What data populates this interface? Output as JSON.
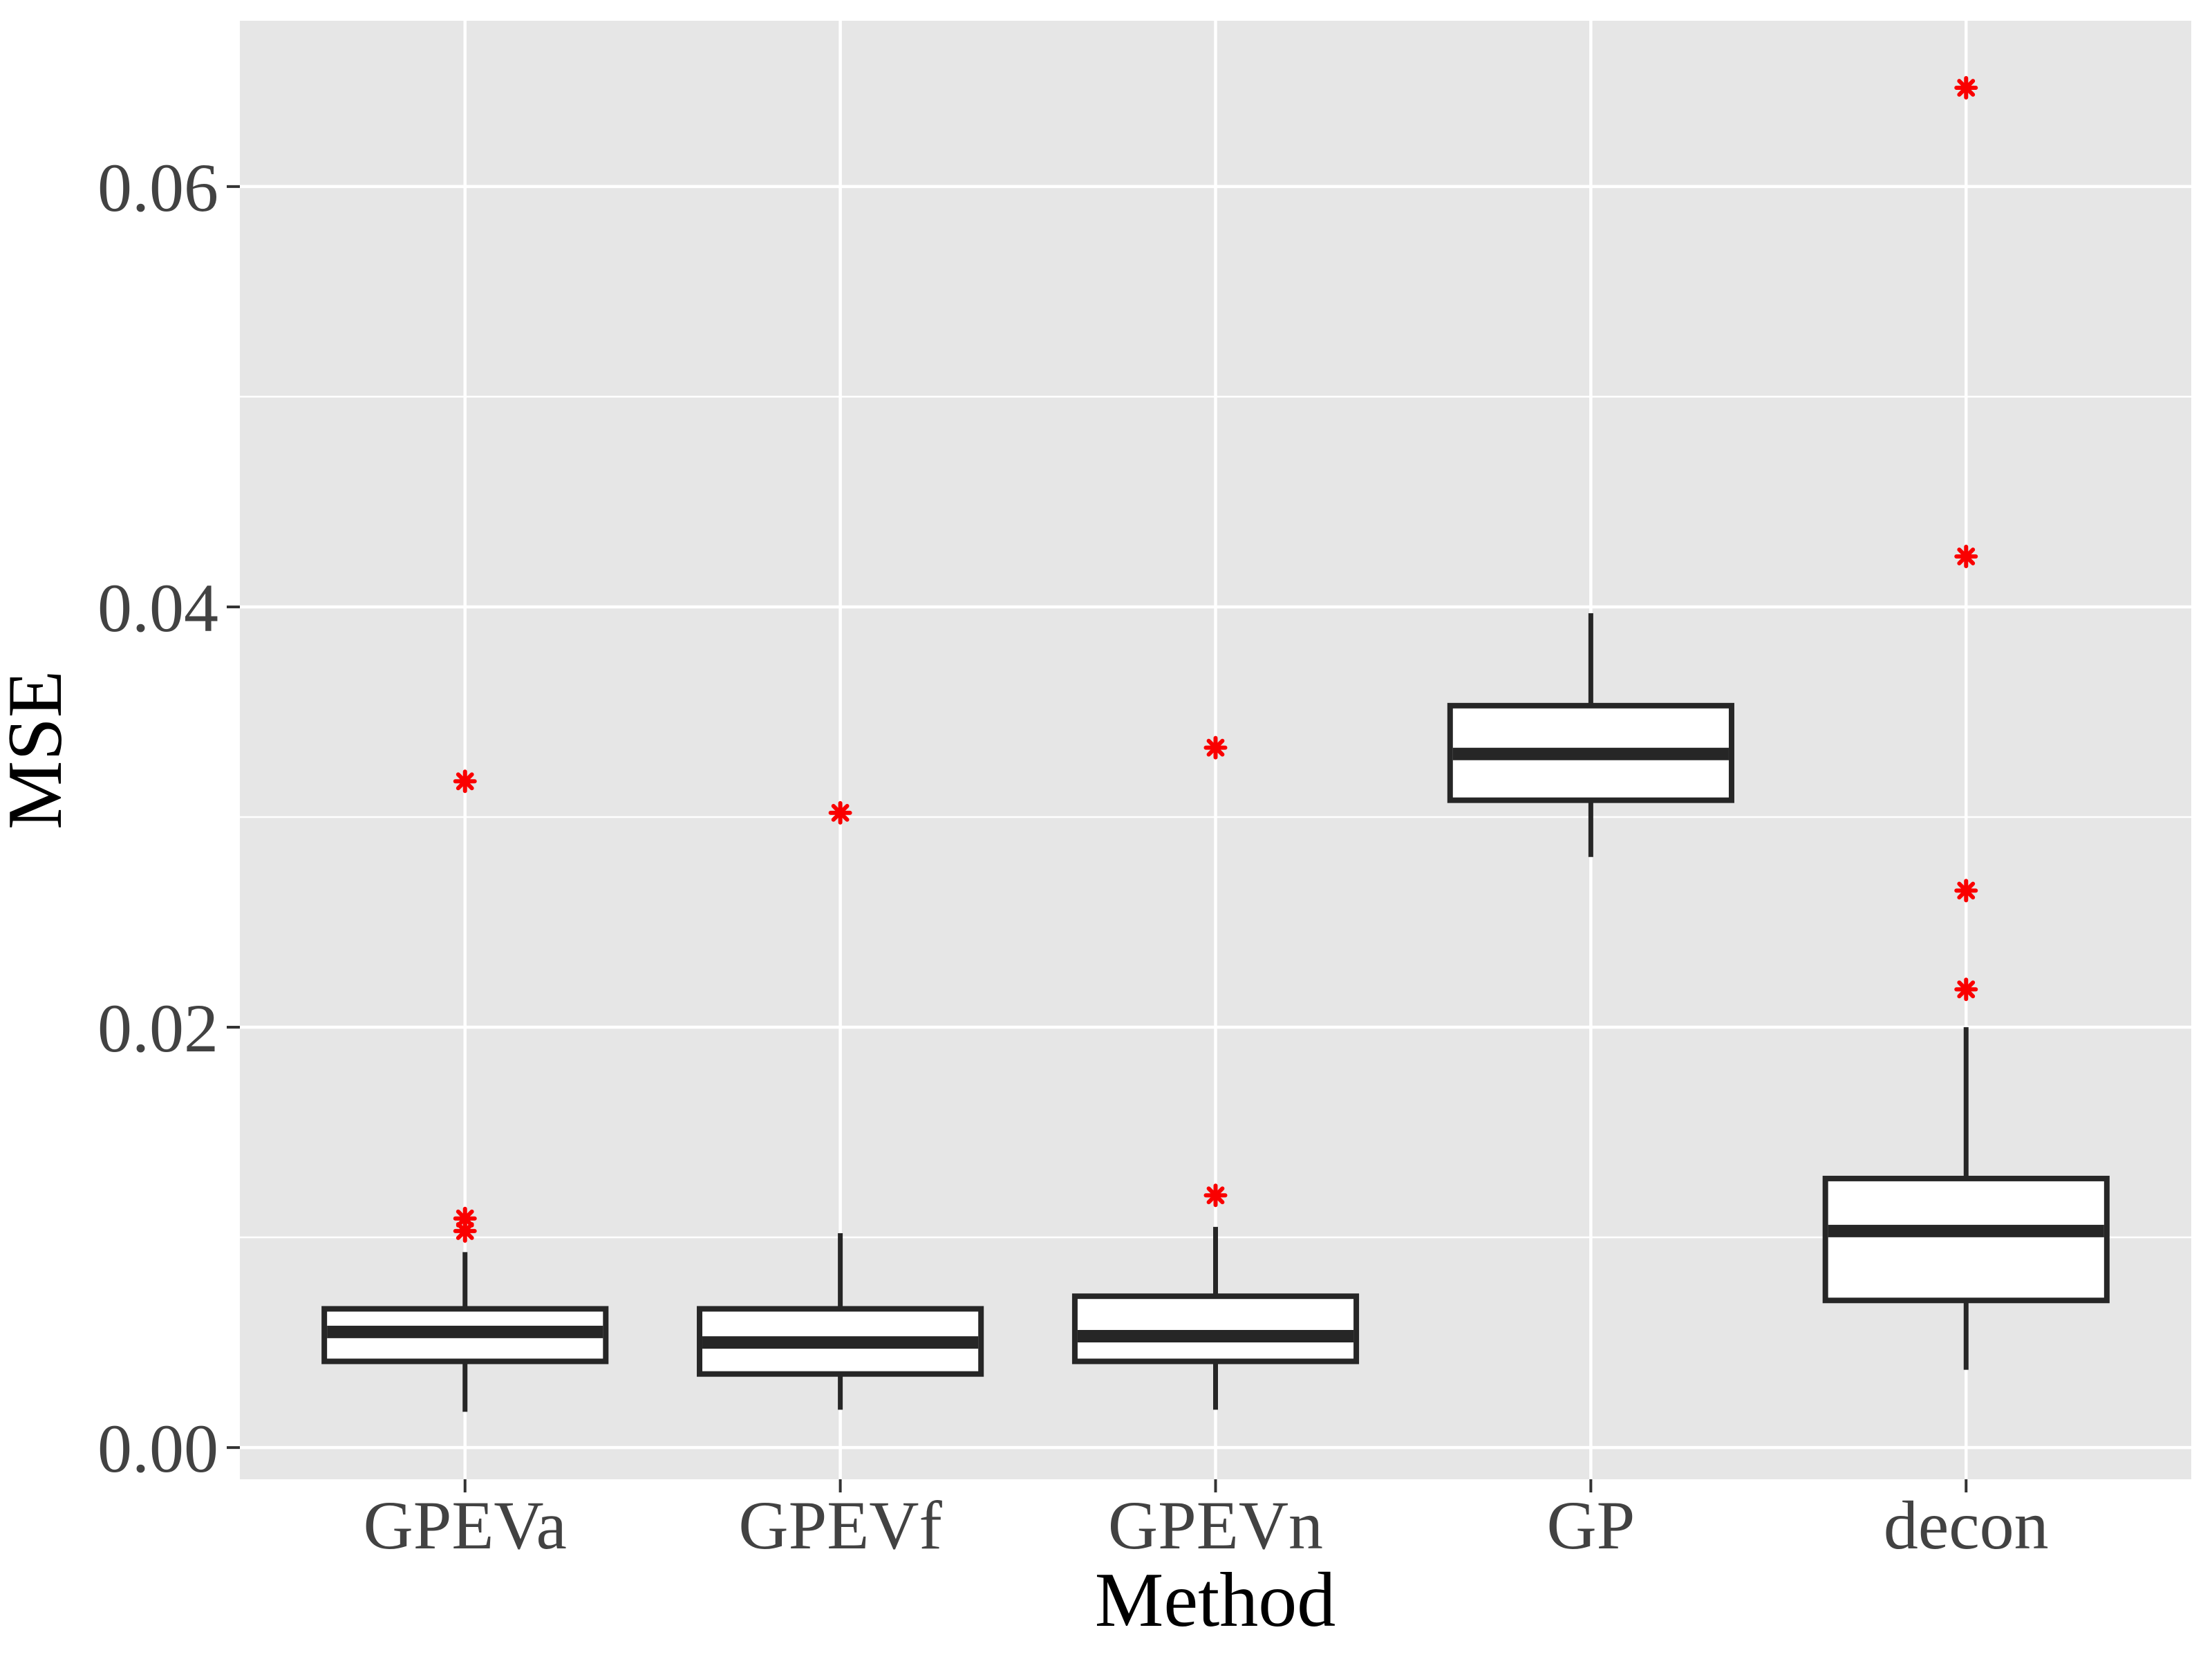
{
  "chart_data": {
    "type": "boxplot",
    "title": "",
    "xlabel": "Method",
    "ylabel": "MSE",
    "categories": [
      "GPEVa",
      "GPEVf",
      "GPEVn",
      "GP",
      "decon"
    ],
    "ylim": [
      -0.00151,
      0.06789
    ],
    "y_axis": {
      "major_ticks": [
        0.0,
        0.02,
        0.04,
        0.06
      ],
      "major_tick_labels": [
        "0.00",
        "0.02",
        "0.04",
        "0.06"
      ],
      "minor_ticks": [
        0.01,
        0.03,
        0.05
      ]
    },
    "grid": {
      "horizontal_major": true,
      "horizontal_minor": true,
      "vertical_at_categories": true,
      "vertical_minor": false
    },
    "legend": "none",
    "series": [
      {
        "category": "GPEVa",
        "whisker_low": 0.0017,
        "q1": 0.0041,
        "median": 0.0055,
        "q3": 0.0066,
        "whisker_high": 0.0093,
        "outliers": [
          0.0103,
          0.0109,
          0.0317
        ]
      },
      {
        "category": "GPEVf",
        "whisker_low": 0.0018,
        "q1": 0.0035,
        "median": 0.005,
        "q3": 0.0066,
        "whisker_high": 0.0102,
        "outliers": [
          0.0302
        ]
      },
      {
        "category": "GPEVn",
        "whisker_low": 0.0018,
        "q1": 0.0041,
        "median": 0.0053,
        "q3": 0.0072,
        "whisker_high": 0.0105,
        "outliers": [
          0.012,
          0.0333
        ]
      },
      {
        "category": "GP",
        "whisker_low": 0.0281,
        "q1": 0.0308,
        "median": 0.033,
        "q3": 0.0353,
        "whisker_high": 0.0397,
        "outliers": []
      },
      {
        "category": "decon",
        "whisker_low": 0.0037,
        "q1": 0.007,
        "median": 0.0103,
        "q3": 0.0128,
        "whisker_high": 0.02,
        "outliers": [
          0.0218,
          0.0265,
          0.0424,
          0.0647
        ]
      }
    ],
    "colors": {
      "panel_bg": "#E6E6E6",
      "grid": "#FFFFFF",
      "box_fill": "#FFFFFF",
      "box_stroke": "#262626",
      "outlier": "#FA0000",
      "axis_tick": "#333333",
      "tick_label": "#424242",
      "axis_title": "#000000"
    },
    "outlier_marker": "red-8-spoke-asterisk"
  }
}
